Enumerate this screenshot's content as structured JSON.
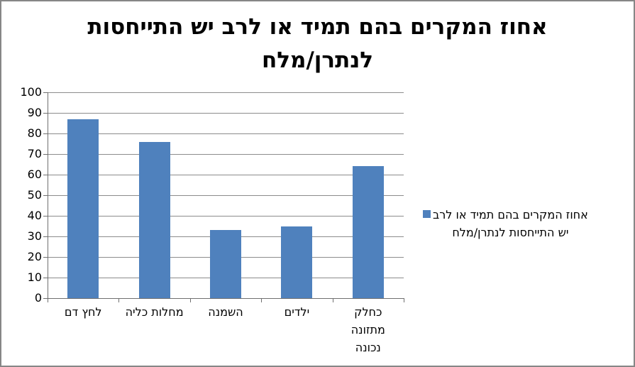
{
  "chart_data": {
    "type": "bar",
    "title": "אחוז המקרים בהם תמיד או לרב יש התייחסות לנתרן/מלח",
    "series_name": "אחוז המקרים בהם תמיד או לרב יש התייחסות לנתרן/מלח",
    "categories": [
      "לחץ דם",
      "מחלות כליה",
      "השמנה",
      "ילדים",
      "כחלק מתזונה נכונה"
    ],
    "values": [
      87,
      76,
      33,
      35,
      64
    ],
    "ylim": [
      0,
      100
    ],
    "yticks": [
      0,
      10,
      20,
      30,
      40,
      50,
      60,
      70,
      80,
      90,
      100
    ],
    "xlabel": "",
    "ylabel": "",
    "grid": true,
    "legend_position": "right",
    "rtl": true,
    "bar_color": "#4F81BD",
    "gridline_color": "#8C8C8C",
    "axis_color": "#6F6F6F"
  },
  "display": {
    "title_lines": "אחוז המקרים בהם תמיד או לרב יש התייחסות\nלנתרן/מלח",
    "category_labels": [
      "לחץ דם",
      "מחלות כליה",
      "השמנה",
      "ילדים",
      "כחלק\nמתזונה\nנכונה"
    ],
    "legend_lines": "אחוז המקרים בהם תמיד או לרב\nיש התייחסות לנתרן/מלח"
  }
}
